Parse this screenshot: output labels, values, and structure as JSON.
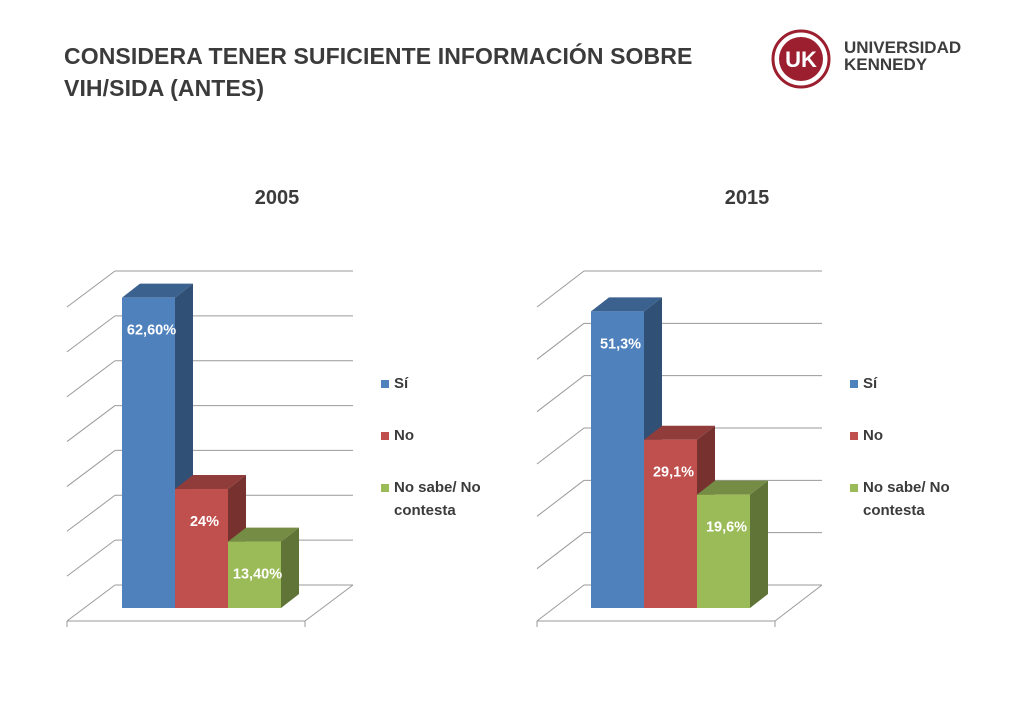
{
  "page": {
    "title_line1": "CONSIDERA TENER SUFICIENTE INFORMACIÓN SOBRE",
    "title_line2": "VIH/SIDA (ANTES)"
  },
  "logo": {
    "mark": "UK",
    "line1": "UNIVERSIDAD",
    "line2": "KENNEDY",
    "color": "#9b1f2e"
  },
  "legend": [
    "Sí",
    "No",
    "No sabe/ No contesta"
  ],
  "chart_data": [
    {
      "type": "bar",
      "title": "2005",
      "categories": [
        "Sí",
        "No",
        "No sabe/ No contesta"
      ],
      "values": [
        62.6,
        24,
        13.4
      ],
      "data_labels": [
        "62,60%",
        "24%",
        "13,40%"
      ],
      "ylim": [
        0,
        70
      ],
      "grid": true,
      "three_d": true,
      "legend_position": "right",
      "colors": [
        "#4f81bd",
        "#c0504d",
        "#9bbb59"
      ]
    },
    {
      "type": "bar",
      "title": "2015",
      "categories": [
        "Sí",
        "No",
        "No sabe/ No contesta"
      ],
      "values": [
        51.3,
        29.1,
        19.6
      ],
      "data_labels": [
        "51,3%",
        "29,1%",
        "19,6%"
      ],
      "ylim": [
        0,
        60
      ],
      "grid": true,
      "three_d": true,
      "legend_position": "right",
      "colors": [
        "#4f81bd",
        "#c0504d",
        "#9bbb59"
      ]
    }
  ]
}
